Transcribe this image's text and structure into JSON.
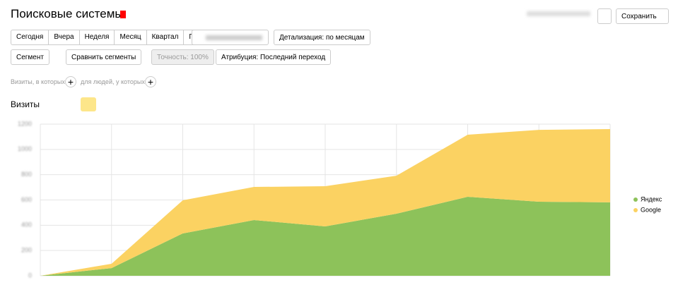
{
  "header": {
    "title": "Поисковые системы",
    "save": "Сохранить"
  },
  "periods": [
    "Сегодня",
    "Вчера",
    "Неделя",
    "Месяц",
    "Квартал",
    "Год"
  ],
  "detail": "Детализация: по месяцам",
  "filters": {
    "segment": "Сегмент",
    "compare": "Сравнить сегменты",
    "accuracy": "Точность: 100%",
    "attribution": "Атрибуция: Последний переход"
  },
  "conditions": {
    "visits": "Визиты, в которых",
    "people": "для людей, у которых"
  },
  "metric": "Визиты",
  "chart_data": {
    "type": "stacked-area",
    "categories": [
      null,
      null,
      null,
      null,
      null,
      null,
      null,
      null,
      null
    ],
    "series": [
      {
        "name": "Яндекс",
        "color": "#8dc25a",
        "values": [
          0,
          61,
          335,
          441,
          391,
          491,
          625,
          586,
          581
        ]
      },
      {
        "name": "Google",
        "color": "#fbd262",
        "values": [
          0,
          34,
          262,
          262,
          318,
          301,
          491,
          569,
          580
        ]
      }
    ],
    "ylim": [
      0,
      1200
    ],
    "yticks": [
      0,
      200,
      400,
      600,
      800,
      1000,
      1200
    ],
    "grid": true
  }
}
